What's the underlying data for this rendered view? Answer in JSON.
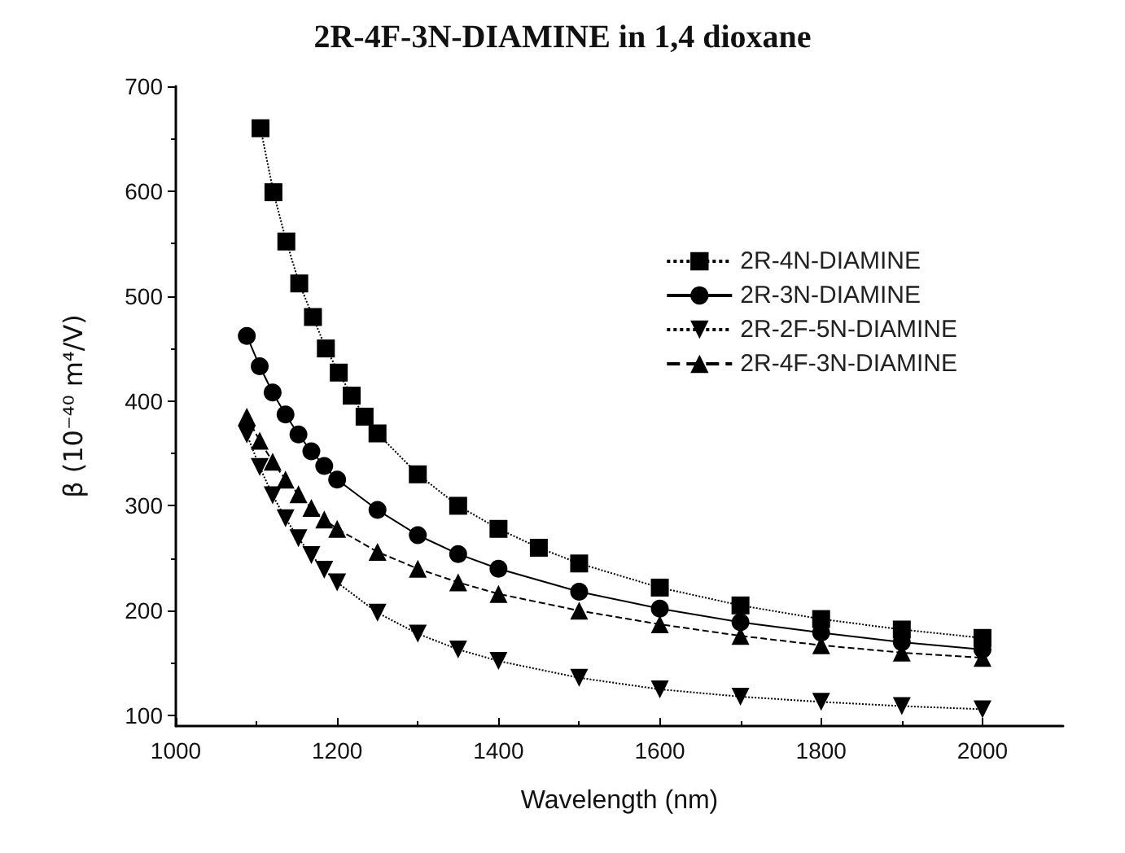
{
  "chart_data": {
    "type": "line",
    "title": "2R-4F-3N-DIAMINE in 1,4 dioxane",
    "xlabel": "Wavelength (nm)",
    "ylabel": "β (10⁻⁴⁰ m⁴/V)",
    "xlim": [
      1000,
      2100
    ],
    "xticks": [
      1000,
      1200,
      1400,
      1600,
      1800,
      2000
    ],
    "ylim": [
      90,
      700
    ],
    "yticks": [
      100,
      200,
      300,
      400,
      500,
      600,
      700
    ],
    "grid": false,
    "legend": "right",
    "series": [
      {
        "name": "2R-4N-DIAMINE",
        "color": "#000000",
        "marker": "square",
        "line_style": "dotted",
        "x": [
          1105,
          1121,
          1137,
          1153,
          1170,
          1186,
          1202,
          1218,
          1234,
          1250,
          1300,
          1350,
          1400,
          1450,
          1500,
          1600,
          1700,
          1800,
          1900,
          2000
        ],
        "values": [
          660,
          599,
          552,
          512,
          480,
          450,
          427,
          405,
          385,
          369,
          330,
          300,
          278,
          260,
          245,
          222,
          205,
          192,
          182,
          174
        ]
      },
      {
        "name": "2R-3N-DIAMINE",
        "color": "#000000",
        "marker": "circle",
        "line_style": "solid",
        "x": [
          1088,
          1104,
          1120,
          1136,
          1152,
          1168,
          1184,
          1200,
          1250,
          1300,
          1350,
          1400,
          1500,
          1600,
          1700,
          1800,
          1900,
          2000
        ],
        "values": [
          462,
          433,
          408,
          387,
          368,
          352,
          338,
          325,
          296,
          272,
          254,
          240,
          218,
          202,
          189,
          179,
          170,
          163
        ]
      },
      {
        "name": "2R-2F-5N-DIAMINE",
        "color": "#000000",
        "marker": "triangle-down",
        "line_style": "dotted",
        "x": [
          1088,
          1104,
          1120,
          1136,
          1152,
          1168,
          1184,
          1200,
          1250,
          1300,
          1350,
          1400,
          1500,
          1600,
          1700,
          1800,
          1900,
          2000
        ],
        "values": [
          368,
          337,
          310,
          288,
          269,
          253,
          239,
          227,
          198,
          178,
          163,
          152,
          136,
          125,
          118,
          113,
          109,
          106
        ]
      },
      {
        "name": "2R-4F-3N-DIAMINE",
        "color": "#000000",
        "marker": "triangle",
        "line_style": "dashed",
        "x": [
          1088,
          1104,
          1120,
          1136,
          1152,
          1168,
          1184,
          1200,
          1250,
          1300,
          1350,
          1400,
          1500,
          1600,
          1700,
          1800,
          1900,
          2000
        ],
        "values": [
          385,
          362,
          342,
          325,
          311,
          298,
          287,
          278,
          256,
          240,
          227,
          216,
          200,
          187,
          176,
          167,
          160,
          155
        ]
      }
    ]
  }
}
